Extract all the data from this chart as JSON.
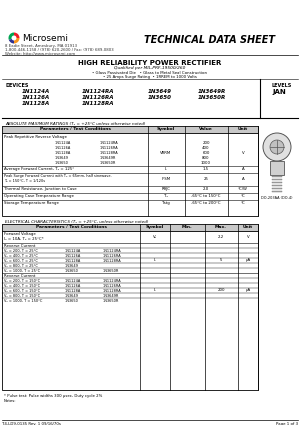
{
  "company": "Microsemi",
  "title": "TECHNICAL DATA SHEET",
  "address": "8 Eadie Street, Amesbury, MA 01913",
  "phone": "1-800-446-1158 / (978) 620-2600 / Fax: (978) 689-0803",
  "website": "Website: http://www.microsemi.com",
  "product_title": "HIGH RELIABILITY POWER RECTIFIER",
  "subtitle1": "Qualified per MIL-PRF-19500/260",
  "subtitle2": "• Glass Passivated Die   • Glass to Metal Seal Construction",
  "subtitle3": "• 25 Amps Surge Rating  • 1RREM to 1000 Volts",
  "devices_label": "DEVICES",
  "levels_label": "LEVELS",
  "levels_value": "JAN",
  "devices_col1": [
    "1N1124A",
    "1N1126A",
    "1N1128A"
  ],
  "devices_col2": [
    "1N1124RA",
    "1N1126RA",
    "1N1128RA"
  ],
  "devices_col3": [
    "1N3649",
    "1N3650"
  ],
  "devices_col4": [
    "1N3649R",
    "1N3650R"
  ],
  "abs_max_title": "ABSOLUTE MAXIMUM RATINGS (Tₐ = +25°C unless otherwise noted)",
  "abs_table_headers": [
    "Parameters / Test Conditions",
    "Symbol",
    "Value",
    "Unit"
  ],
  "elec_char_title": "ELECTRICAL CHARACTERISTICS (Tₐ = +25°C, unless otherwise noted)",
  "elec_table_headers": [
    "Parameters / Test Conditions",
    "Symbol",
    "Min.",
    "Max.",
    "Unit"
  ],
  "footnote": "* Pulse test: Pulse widths 300 μsec, Duty cycle 2%",
  "notes": "Notes:",
  "footer_left": "T4-LD9-0135 Rev. 1 09/16/70s",
  "footer_right": "Page 1 of 3",
  "package_label": "DO-203AA (DO-4)",
  "bg_color": "#ffffff",
  "table_header_bg": "#c8c8c8"
}
